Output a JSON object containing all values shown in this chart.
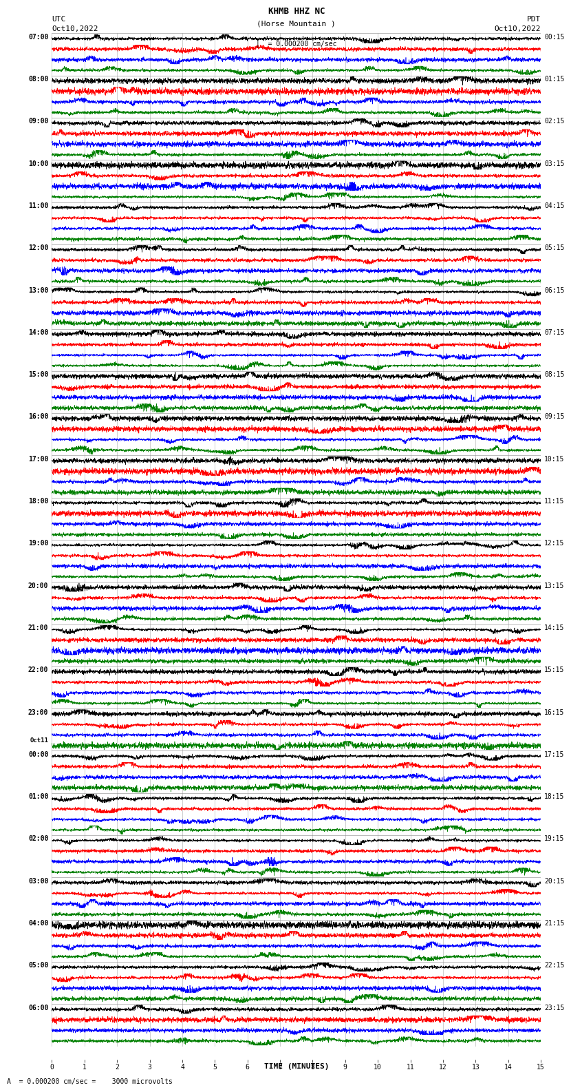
{
  "title_line1": "KHMB HHZ NC",
  "title_line2": "(Horse Mountain )",
  "scale_label": "= 0.000200 cm/sec",
  "bottom_label": "A  = 0.000200 cm/sec =    3000 microvolts",
  "xlabel": "TIME (MINUTES)",
  "left_label": "UTC",
  "left_date": "Oct10,2022",
  "right_label": "PDT",
  "right_date": "Oct10,2022",
  "left_times": [
    "07:00",
    "08:00",
    "09:00",
    "10:00",
    "11:00",
    "12:00",
    "13:00",
    "14:00",
    "15:00",
    "16:00",
    "17:00",
    "18:00",
    "19:00",
    "20:00",
    "21:00",
    "22:00",
    "23:00",
    "00:00",
    "01:00",
    "02:00",
    "03:00",
    "04:00",
    "05:00",
    "06:00"
  ],
  "oct11_group": 17,
  "right_times": [
    "00:15",
    "01:15",
    "02:15",
    "03:15",
    "04:15",
    "05:15",
    "06:15",
    "07:15",
    "08:15",
    "09:15",
    "10:15",
    "11:15",
    "12:15",
    "13:15",
    "14:15",
    "15:15",
    "16:15",
    "17:15",
    "18:15",
    "19:15",
    "20:15",
    "21:15",
    "22:15",
    "23:15"
  ],
  "colors": [
    "black",
    "red",
    "blue",
    "green"
  ],
  "n_groups": 24,
  "traces_per_group": 4,
  "minutes_per_row": 15,
  "n_points": 3600,
  "fig_width": 8.5,
  "fig_height": 16.13,
  "background_color": "white",
  "grid_color": "#888888",
  "font_size": 7,
  "title_font_size": 8,
  "trace_amplitude": 0.4,
  "linewidth": 0.45
}
